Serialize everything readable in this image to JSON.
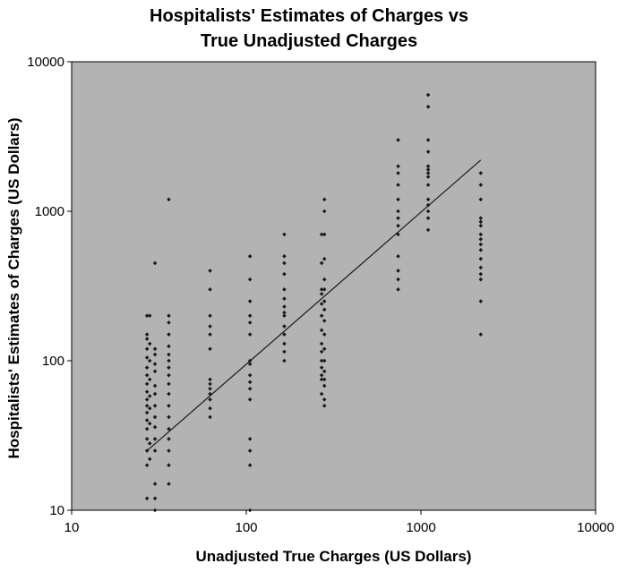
{
  "chart_data": {
    "type": "scatter",
    "title": "Hospitalists' Estimates of Charges vs",
    "subtitle": "True Unadjusted Charges",
    "xlabel": "Unadjusted True Charges (US Dollars)",
    "ylabel": "Hospitalists' Estimates of Charges (US Dollars)",
    "x_scale": "log",
    "y_scale": "log",
    "xlim": [
      10,
      10000
    ],
    "ylim": [
      10,
      10000
    ],
    "x_ticks": [
      "10",
      "100",
      "1000",
      "10000"
    ],
    "y_ticks": [
      "10",
      "100",
      "1000",
      "10000"
    ],
    "x_tick_values": [
      10,
      100,
      1000,
      10000
    ],
    "y_tick_values": [
      10,
      100,
      1000,
      10000
    ],
    "grid": false,
    "legend": "none",
    "colors": {
      "plot_background": "#b3b3b3",
      "marker": "#1a1a1a",
      "trend_line": "#1a1a1a"
    },
    "trend_line": {
      "x": [
        27,
        2200
      ],
      "y": [
        25,
        2200
      ]
    },
    "points": [
      {
        "x": 27,
        "y": 200
      },
      {
        "x": 27,
        "y": 150
      },
      {
        "x": 27,
        "y": 140
      },
      {
        "x": 27,
        "y": 120
      },
      {
        "x": 27,
        "y": 105
      },
      {
        "x": 27,
        "y": 90
      },
      {
        "x": 27,
        "y": 80
      },
      {
        "x": 27,
        "y": 70
      },
      {
        "x": 27,
        "y": 62
      },
      {
        "x": 27,
        "y": 55
      },
      {
        "x": 27,
        "y": 50
      },
      {
        "x": 27,
        "y": 45
      },
      {
        "x": 27,
        "y": 40
      },
      {
        "x": 27,
        "y": 35
      },
      {
        "x": 27,
        "y": 30
      },
      {
        "x": 27,
        "y": 25
      },
      {
        "x": 27,
        "y": 20
      },
      {
        "x": 27,
        "y": 12
      },
      {
        "x": 28,
        "y": 200
      },
      {
        "x": 28,
        "y": 130
      },
      {
        "x": 28,
        "y": 100
      },
      {
        "x": 28,
        "y": 75
      },
      {
        "x": 28,
        "y": 58
      },
      {
        "x": 28,
        "y": 48
      },
      {
        "x": 28,
        "y": 38
      },
      {
        "x": 28,
        "y": 28
      },
      {
        "x": 28,
        "y": 22
      },
      {
        "x": 30,
        "y": 450
      },
      {
        "x": 30,
        "y": 120
      },
      {
        "x": 30,
        "y": 110
      },
      {
        "x": 30,
        "y": 95
      },
      {
        "x": 30,
        "y": 85
      },
      {
        "x": 30,
        "y": 68
      },
      {
        "x": 30,
        "y": 60
      },
      {
        "x": 30,
        "y": 50
      },
      {
        "x": 30,
        "y": 42
      },
      {
        "x": 30,
        "y": 36
      },
      {
        "x": 30,
        "y": 30
      },
      {
        "x": 30,
        "y": 25
      },
      {
        "x": 30,
        "y": 15
      },
      {
        "x": 30,
        "y": 12
      },
      {
        "x": 30,
        "y": 10
      },
      {
        "x": 36,
        "y": 1200
      },
      {
        "x": 36,
        "y": 200
      },
      {
        "x": 36,
        "y": 180
      },
      {
        "x": 36,
        "y": 150
      },
      {
        "x": 36,
        "y": 125
      },
      {
        "x": 36,
        "y": 110
      },
      {
        "x": 36,
        "y": 100
      },
      {
        "x": 36,
        "y": 90
      },
      {
        "x": 36,
        "y": 80
      },
      {
        "x": 36,
        "y": 70
      },
      {
        "x": 36,
        "y": 60
      },
      {
        "x": 36,
        "y": 50
      },
      {
        "x": 36,
        "y": 42
      },
      {
        "x": 36,
        "y": 35
      },
      {
        "x": 36,
        "y": 30
      },
      {
        "x": 36,
        "y": 25
      },
      {
        "x": 36,
        "y": 20
      },
      {
        "x": 36,
        "y": 15
      },
      {
        "x": 62,
        "y": 400
      },
      {
        "x": 62,
        "y": 300
      },
      {
        "x": 62,
        "y": 200
      },
      {
        "x": 62,
        "y": 170
      },
      {
        "x": 62,
        "y": 150
      },
      {
        "x": 62,
        "y": 120
      },
      {
        "x": 62,
        "y": 75
      },
      {
        "x": 62,
        "y": 70
      },
      {
        "x": 62,
        "y": 65
      },
      {
        "x": 62,
        "y": 60
      },
      {
        "x": 62,
        "y": 55
      },
      {
        "x": 62,
        "y": 48
      },
      {
        "x": 62,
        "y": 42
      },
      {
        "x": 105,
        "y": 500
      },
      {
        "x": 105,
        "y": 350
      },
      {
        "x": 105,
        "y": 250
      },
      {
        "x": 105,
        "y": 200
      },
      {
        "x": 105,
        "y": 180
      },
      {
        "x": 105,
        "y": 150
      },
      {
        "x": 105,
        "y": 100
      },
      {
        "x": 105,
        "y": 95
      },
      {
        "x": 105,
        "y": 80
      },
      {
        "x": 105,
        "y": 72
      },
      {
        "x": 105,
        "y": 65
      },
      {
        "x": 105,
        "y": 55
      },
      {
        "x": 105,
        "y": 30
      },
      {
        "x": 105,
        "y": 25
      },
      {
        "x": 105,
        "y": 20
      },
      {
        "x": 105,
        "y": 10
      },
      {
        "x": 165,
        "y": 700
      },
      {
        "x": 165,
        "y": 500
      },
      {
        "x": 165,
        "y": 450
      },
      {
        "x": 165,
        "y": 380
      },
      {
        "x": 165,
        "y": 300
      },
      {
        "x": 165,
        "y": 260
      },
      {
        "x": 165,
        "y": 230
      },
      {
        "x": 165,
        "y": 210
      },
      {
        "x": 165,
        "y": 200
      },
      {
        "x": 165,
        "y": 170
      },
      {
        "x": 165,
        "y": 150
      },
      {
        "x": 165,
        "y": 130
      },
      {
        "x": 165,
        "y": 115
      },
      {
        "x": 165,
        "y": 100
      },
      {
        "x": 270,
        "y": 700
      },
      {
        "x": 270,
        "y": 450
      },
      {
        "x": 270,
        "y": 300
      },
      {
        "x": 270,
        "y": 280
      },
      {
        "x": 270,
        "y": 240
      },
      {
        "x": 270,
        "y": 200
      },
      {
        "x": 270,
        "y": 160
      },
      {
        "x": 270,
        "y": 130
      },
      {
        "x": 270,
        "y": 115
      },
      {
        "x": 270,
        "y": 100
      },
      {
        "x": 270,
        "y": 90
      },
      {
        "x": 270,
        "y": 80
      },
      {
        "x": 270,
        "y": 75
      },
      {
        "x": 270,
        "y": 60
      },
      {
        "x": 280,
        "y": 1200
      },
      {
        "x": 280,
        "y": 1000
      },
      {
        "x": 280,
        "y": 700
      },
      {
        "x": 280,
        "y": 480
      },
      {
        "x": 280,
        "y": 350
      },
      {
        "x": 280,
        "y": 300
      },
      {
        "x": 280,
        "y": 250
      },
      {
        "x": 280,
        "y": 220
      },
      {
        "x": 280,
        "y": 185
      },
      {
        "x": 280,
        "y": 150
      },
      {
        "x": 280,
        "y": 120
      },
      {
        "x": 280,
        "y": 100
      },
      {
        "x": 280,
        "y": 85
      },
      {
        "x": 280,
        "y": 75
      },
      {
        "x": 280,
        "y": 68
      },
      {
        "x": 280,
        "y": 55
      },
      {
        "x": 280,
        "y": 50
      },
      {
        "x": 740,
        "y": 3000
      },
      {
        "x": 740,
        "y": 2000
      },
      {
        "x": 740,
        "y": 1800
      },
      {
        "x": 740,
        "y": 1500
      },
      {
        "x": 740,
        "y": 1200
      },
      {
        "x": 740,
        "y": 1000
      },
      {
        "x": 740,
        "y": 900
      },
      {
        "x": 740,
        "y": 800
      },
      {
        "x": 740,
        "y": 700
      },
      {
        "x": 740,
        "y": 500
      },
      {
        "x": 740,
        "y": 400
      },
      {
        "x": 740,
        "y": 350
      },
      {
        "x": 740,
        "y": 300
      },
      {
        "x": 1100,
        "y": 6000
      },
      {
        "x": 1100,
        "y": 5000
      },
      {
        "x": 1100,
        "y": 3000
      },
      {
        "x": 1100,
        "y": 2500
      },
      {
        "x": 1100,
        "y": 2000
      },
      {
        "x": 1100,
        "y": 1900
      },
      {
        "x": 1100,
        "y": 1800
      },
      {
        "x": 1100,
        "y": 1700
      },
      {
        "x": 1100,
        "y": 1500
      },
      {
        "x": 1100,
        "y": 1200
      },
      {
        "x": 1100,
        "y": 1100
      },
      {
        "x": 1100,
        "y": 1000
      },
      {
        "x": 1100,
        "y": 900
      },
      {
        "x": 1100,
        "y": 750
      },
      {
        "x": 2200,
        "y": 1800
      },
      {
        "x": 2200,
        "y": 1500
      },
      {
        "x": 2200,
        "y": 1200
      },
      {
        "x": 2200,
        "y": 900
      },
      {
        "x": 2200,
        "y": 850
      },
      {
        "x": 2200,
        "y": 800
      },
      {
        "x": 2200,
        "y": 700
      },
      {
        "x": 2200,
        "y": 650
      },
      {
        "x": 2200,
        "y": 600
      },
      {
        "x": 2200,
        "y": 550
      },
      {
        "x": 2200,
        "y": 480
      },
      {
        "x": 2200,
        "y": 420
      },
      {
        "x": 2200,
        "y": 380
      },
      {
        "x": 2200,
        "y": 350
      },
      {
        "x": 2200,
        "y": 250
      },
      {
        "x": 2200,
        "y": 150
      }
    ]
  }
}
